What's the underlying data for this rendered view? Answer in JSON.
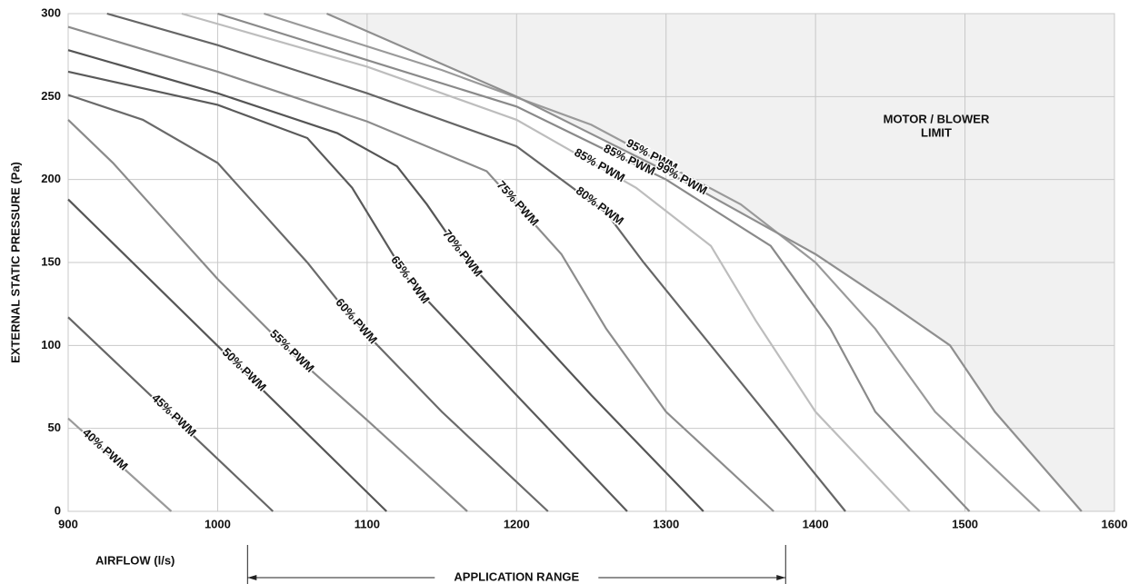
{
  "chart_data": {
    "type": "line",
    "x_label": "AIRFLOW (l/s)",
    "y_label": "EXTERNAL STATIC PRESSURE (Pa)",
    "xlim": [
      900,
      1600
    ],
    "ylim": [
      0,
      300
    ],
    "xticks": [
      900,
      1000,
      1100,
      1200,
      1300,
      1400,
      1500,
      1600
    ],
    "yticks": [
      0,
      50,
      100,
      150,
      200,
      250,
      300
    ],
    "grid": true,
    "limit_region": {
      "label_lines": [
        "MOTOR / BLOWER",
        "LIMIT"
      ],
      "color": "#f1f1f1"
    },
    "application_range": {
      "label": "APPLICATION RANGE",
      "x": [
        1020,
        1380
      ]
    },
    "series": [
      {
        "name": "40% PWM",
        "color": "#9a9a9a",
        "x": [
          900,
          969
        ],
        "values": [
          56,
          0
        ]
      },
      {
        "name": "45% PWM",
        "color": "#666666",
        "x": [
          900,
          1037
        ],
        "values": [
          117,
          0
        ]
      },
      {
        "name": "50% PWM",
        "color": "#555555",
        "x": [
          900,
          1113
        ],
        "values": [
          188,
          0
        ]
      },
      {
        "name": "55% PWM",
        "color": "#8a8a8a",
        "x": [
          900,
          930,
          960,
          1000,
          1050,
          1100,
          1167
        ],
        "values": [
          236,
          210,
          180,
          140,
          95,
          55,
          0
        ]
      },
      {
        "name": "60% PWM",
        "color": "#6a6a6a",
        "x": [
          900,
          950,
          1000,
          1030,
          1060,
          1092,
          1150,
          1221
        ],
        "values": [
          251,
          236,
          210,
          180,
          150,
          114,
          60,
          0
        ]
      },
      {
        "name": "65% PWM",
        "color": "#5a5a5a",
        "x": [
          900,
          1000,
          1060,
          1090,
          1128,
          1200,
          1274
        ],
        "values": [
          265,
          245,
          225,
          195,
          139,
          70,
          0
        ]
      },
      {
        "name": "70% PWM",
        "color": "#555555",
        "x": [
          900,
          1000,
          1080,
          1120,
          1140,
          1163,
          1250,
          1325
        ],
        "values": [
          278,
          252,
          228,
          208,
          185,
          155,
          70,
          0
        ]
      },
      {
        "name": "75% PWM",
        "color": "#8c8c8c",
        "x": [
          900,
          1000,
          1100,
          1180,
          1230,
          1260,
          1300,
          1372
        ],
        "values": [
          292,
          265,
          235,
          205,
          155,
          110,
          60,
          0
        ]
      },
      {
        "name": "80% PWM",
        "color": "#666666",
        "x": [
          926,
          1000,
          1100,
          1200,
          1260,
          1285,
          1330,
          1420
        ],
        "values": [
          300,
          281,
          252,
          220,
          180,
          150,
          100,
          0
        ]
      },
      {
        "name": "85% PWM",
        "color": "#bdbdbd",
        "x": [
          976,
          1100,
          1200,
          1280,
          1330,
          1360,
          1400,
          1463
        ],
        "values": [
          300,
          268,
          236,
          195,
          160,
          115,
          60,
          0
        ]
      },
      {
        "name": "85% PWM",
        "color": "#8a8a8a",
        "x": [
          1000,
          1100,
          1200,
          1300,
          1370,
          1410,
          1440,
          1503
        ],
        "values": [
          300,
          272,
          244,
          200,
          160,
          110,
          60,
          0
        ]
      },
      {
        "name": "95% PWM",
        "color": "#9a9a9a",
        "x": [
          1031,
          1150,
          1250,
          1350,
          1400,
          1440,
          1480,
          1550
        ],
        "values": [
          300,
          266,
          233,
          185,
          150,
          110,
          60,
          0
        ]
      },
      {
        "name": "99% PWM",
        "color": "#8f8f8f",
        "x": [
          1073,
          1200,
          1300,
          1400,
          1450,
          1490,
          1520,
          1578
        ],
        "values": [
          300,
          250,
          205,
          155,
          125,
          100,
          60,
          0
        ]
      }
    ]
  }
}
